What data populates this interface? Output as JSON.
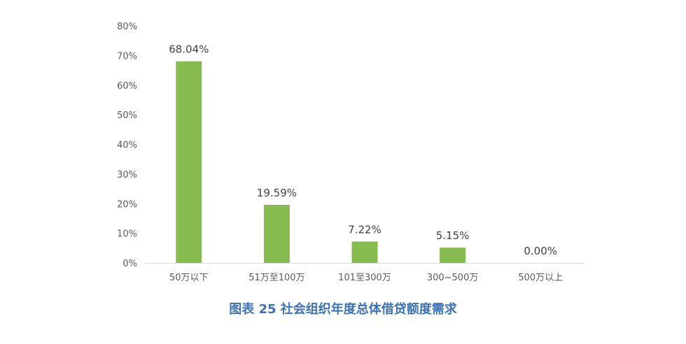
{
  "chart_data": {
    "type": "bar",
    "title": "图表 25 社会组织年度总体借贷额度需求",
    "categories": [
      "50万以下",
      "51万至100万",
      "101至300万",
      "300~500万",
      "500万以上"
    ],
    "values": [
      68.04,
      19.59,
      7.22,
      5.15,
      0.0
    ],
    "data_labels": [
      "68.04%",
      "19.59%",
      "7.22%",
      "5.15%",
      "0.00%"
    ],
    "yticks": [
      "0%",
      "10%",
      "20%",
      "30%",
      "40%",
      "50%",
      "60%",
      "70%",
      "80%"
    ],
    "ylim": [
      0,
      80
    ],
    "xlabel": "",
    "ylabel": "",
    "grid": false,
    "legend": "none",
    "colors": {
      "bar": "#86bb50",
      "title": "#3d72b5",
      "axis": "#d9d9d9"
    }
  }
}
